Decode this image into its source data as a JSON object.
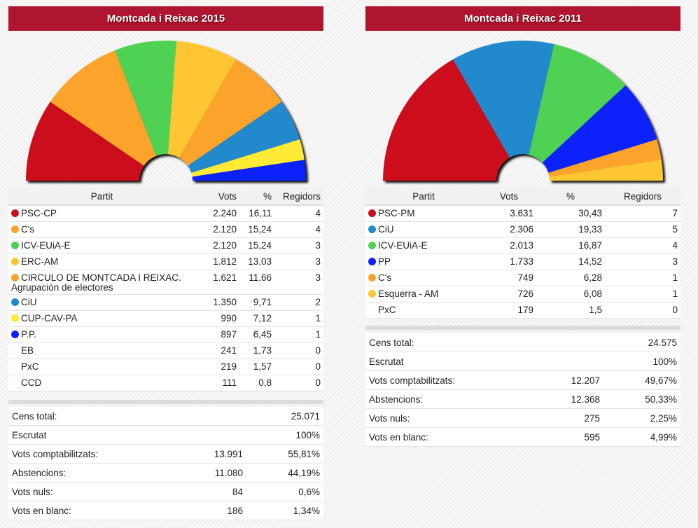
{
  "chart_data": [
    {
      "type": "hemicycle",
      "title": "Montcada i Reixac 2015",
      "total_seats": 21,
      "columns": [
        "Partit",
        "Vots",
        "%",
        "Regidors"
      ],
      "parties": [
        {
          "name": "PSC-CP",
          "subname": "",
          "votes": "2.240",
          "pct": "16,11",
          "seats": 4,
          "color": "#cc0f1f"
        },
        {
          "name": "C's",
          "subname": "",
          "votes": "2.120",
          "pct": "15,24",
          "seats": 4,
          "color": "#fba32b"
        },
        {
          "name": "ICV-EUiA-E",
          "subname": "",
          "votes": "2.120",
          "pct": "15,24",
          "seats": 3,
          "color": "#4fd153"
        },
        {
          "name": "ERC-AM",
          "subname": "",
          "votes": "1.812",
          "pct": "13,03",
          "seats": 3,
          "color": "#fec631"
        },
        {
          "name": "CIRCULO DE MONTCADA I REIXAC.",
          "subname": "Agrupación de electores",
          "votes": "1.621",
          "pct": "11,66",
          "seats": 3,
          "color": "#fba32b"
        },
        {
          "name": "CiU",
          "subname": "",
          "votes": "1.350",
          "pct": "9,71",
          "seats": 2,
          "color": "#228acc"
        },
        {
          "name": "CUP-CAV-PA",
          "subname": "",
          "votes": "990",
          "pct": "7,12",
          "seats": 1,
          "color": "#feeb34"
        },
        {
          "name": "P.P.",
          "subname": "",
          "votes": "897",
          "pct": "6,45",
          "seats": 1,
          "color": "#0d22fb"
        },
        {
          "name": "EB",
          "subname": "",
          "votes": "241",
          "pct": "1,73",
          "seats": 0,
          "color": ""
        },
        {
          "name": "PxC",
          "subname": "",
          "votes": "219",
          "pct": "1,57",
          "seats": 0,
          "color": ""
        },
        {
          "name": "CCD",
          "subname": "",
          "votes": "111",
          "pct": "0,8",
          "seats": 0,
          "color": ""
        }
      ],
      "summary": [
        {
          "label": "Cens total:",
          "value": "",
          "pct": "25.071"
        },
        {
          "label": "Escrutat",
          "value": "",
          "pct": "100%"
        },
        {
          "label": "Vots comptabilitzats:",
          "value": "13.991",
          "pct": "55,81%"
        },
        {
          "label": "Abstencions:",
          "value": "11.080",
          "pct": "44,19%"
        },
        {
          "label": "Vots nuls:",
          "value": "84",
          "pct": "0,6%"
        },
        {
          "label": "Vots en blanc:",
          "value": "186",
          "pct": "1,34%"
        }
      ]
    },
    {
      "type": "hemicycle",
      "title": "Montcada i Reixac 2011",
      "total_seats": 21,
      "columns": [
        "Partit",
        "Vots",
        "%",
        "Regidors"
      ],
      "parties": [
        {
          "name": "PSC-PM",
          "subname": "",
          "votes": "3.631",
          "pct": "30,43",
          "seats": 7,
          "color": "#cc0f1f"
        },
        {
          "name": "CiU",
          "subname": "",
          "votes": "2.306",
          "pct": "19,33",
          "seats": 5,
          "color": "#228acc"
        },
        {
          "name": "ICV-EUiA-E",
          "subname": "",
          "votes": "2.013",
          "pct": "16,87",
          "seats": 4,
          "color": "#4fd153"
        },
        {
          "name": "PP",
          "subname": "",
          "votes": "1.733",
          "pct": "14,52",
          "seats": 3,
          "color": "#0d22fb"
        },
        {
          "name": "C's",
          "subname": "",
          "votes": "749",
          "pct": "6,28",
          "seats": 1,
          "color": "#fba32b"
        },
        {
          "name": "Esquerra - AM",
          "subname": "",
          "votes": "726",
          "pct": "6,08",
          "seats": 1,
          "color": "#fec631"
        },
        {
          "name": "PxC",
          "subname": "",
          "votes": "179",
          "pct": "1,5",
          "seats": 0,
          "color": ""
        }
      ],
      "summary": [
        {
          "label": "Cens total:",
          "value": "",
          "pct": "24.575"
        },
        {
          "label": "Escrutat",
          "value": "",
          "pct": "100%"
        },
        {
          "label": "Vots comptabilitzats:",
          "value": "12.207",
          "pct": "49,67%"
        },
        {
          "label": "Abstencions:",
          "value": "12.368",
          "pct": "50,33%"
        },
        {
          "label": "Vots nuls:",
          "value": "275",
          "pct": "2,25%"
        },
        {
          "label": "Vots en blanc:",
          "value": "595",
          "pct": "4,99%"
        }
      ]
    }
  ]
}
